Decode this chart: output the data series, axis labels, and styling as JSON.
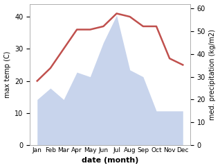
{
  "months": [
    "Jan",
    "Feb",
    "Mar",
    "Apr",
    "May",
    "Jun",
    "Jul",
    "Aug",
    "Sep",
    "Oct",
    "Nov",
    "Dec"
  ],
  "temperature": [
    20,
    24,
    30,
    36,
    36,
    37,
    41,
    40,
    37,
    37,
    27,
    25
  ],
  "precipitation": [
    20,
    25,
    20,
    32,
    30,
    45,
    57,
    33,
    30,
    15,
    15,
    15
  ],
  "temp_color": "#c0504d",
  "precip_fill_color": "#c8d4ec",
  "precip_edge_color": "#b0c0e0",
  "ylabel_left": "max temp (C)",
  "ylabel_right": "med. precipitation (kg/m2)",
  "xlabel": "date (month)",
  "ylim_left": [
    0,
    44
  ],
  "ylim_right": [
    0,
    62
  ],
  "yticks_left": [
    0,
    10,
    20,
    30,
    40
  ],
  "yticks_right": [
    0,
    10,
    20,
    30,
    40,
    50,
    60
  ],
  "bg_color": "#ffffff",
  "line_width": 1.8
}
